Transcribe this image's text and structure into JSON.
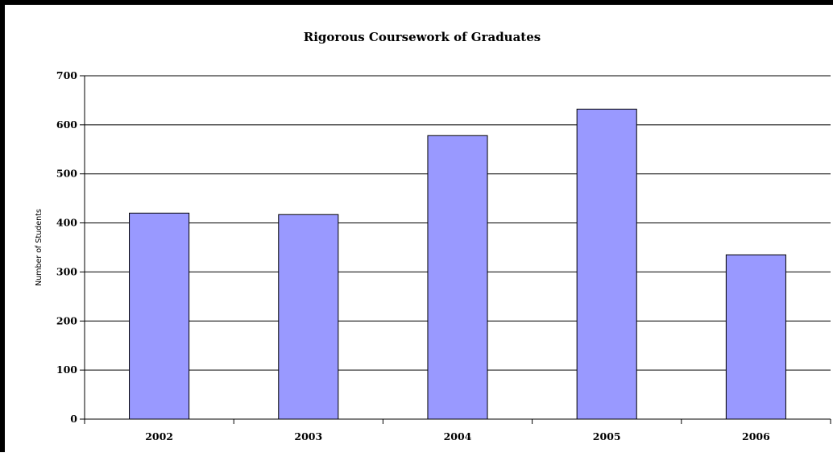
{
  "chart_data": {
    "type": "bar",
    "title": "Rigorous Coursework of Graduates",
    "xlabel": "",
    "ylabel": "Number of Students",
    "categories": [
      "2002",
      "2003",
      "2004",
      "2005",
      "2006"
    ],
    "values": [
      420,
      417,
      578,
      632,
      335
    ],
    "ylim": [
      0,
      700
    ],
    "yticks": [
      0,
      100,
      200,
      300,
      400,
      500,
      600,
      700
    ],
    "grid": true,
    "legend": "none",
    "bar_color": "#9999ff",
    "bar_edge_color": "#000000"
  }
}
